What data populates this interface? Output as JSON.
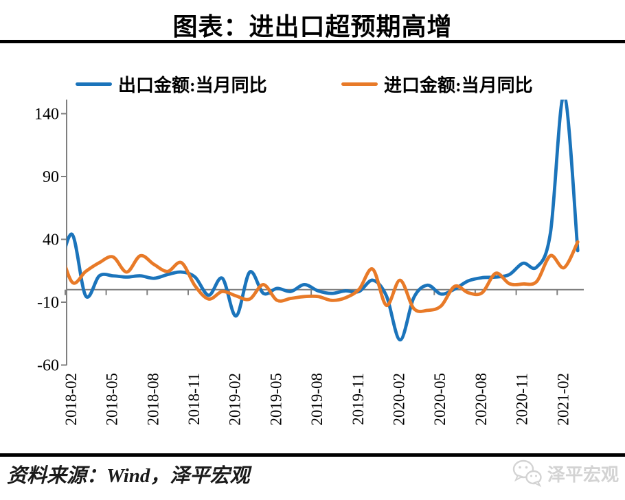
{
  "title": "图表：进出口超预期高增",
  "legend": [
    {
      "label": "出口金额:当月同比",
      "color": "#1b74bb"
    },
    {
      "label": "进口金额:当月同比",
      "color": "#e87a28"
    }
  ],
  "source_note": "资料来源：Wind，泽平宏观",
  "watermark": {
    "text": "泽平宏观",
    "icon": "wechat-chat-bubbles-icon",
    "color": "#d3d3d3"
  },
  "colors": {
    "export_line": "#1b74bb",
    "import_line": "#e87a28",
    "axis": "#7f7f7f",
    "divider": "#000000"
  },
  "chart_data": {
    "type": "line",
    "smooth": true,
    "title": "图表：进出口超预期高增",
    "legend_position": "top",
    "grid": false,
    "ylim": [
      -60,
      151
    ],
    "yticks": [
      140,
      90,
      40,
      -10,
      -60
    ],
    "x": [
      "2018-01",
      "2018-02",
      "2018-03",
      "2018-04",
      "2018-05",
      "2018-06",
      "2018-07",
      "2018-08",
      "2018-09",
      "2018-10",
      "2018-11",
      "2018-12",
      "2019-01",
      "2019-02",
      "2019-03",
      "2019-04",
      "2019-05",
      "2019-06",
      "2019-07",
      "2019-08",
      "2019-09",
      "2019-10",
      "2019-11",
      "2019-12",
      "2020-01",
      "2020-02",
      "2020-03",
      "2020-04",
      "2020-05",
      "2020-06",
      "2020-07",
      "2020-08",
      "2020-09",
      "2020-10",
      "2020-11",
      "2020-12",
      "2021-01",
      "2021-02",
      "2021-03"
    ],
    "xtick_labels": [
      "2018-02",
      "2018-05",
      "2018-08",
      "2018-11",
      "2019-02",
      "2019-05",
      "2019-08",
      "2019-11",
      "2020-02",
      "2020-05",
      "2020-08",
      "2020-11",
      "2021-02"
    ],
    "series": [
      {
        "name": "出口金额:当月同比",
        "color": "#1b74bb",
        "values": [
          11,
          44,
          -5,
          11,
          11,
          10,
          11,
          9,
          12,
          14,
          10,
          -4.5,
          9,
          -21,
          14,
          -3,
          1,
          -1.5,
          4,
          -1,
          -3,
          -1,
          -1.5,
          7.5,
          -5,
          -40,
          -6.5,
          3.5,
          -3.5,
          0.5,
          7,
          9.5,
          10,
          12,
          21,
          18,
          45,
          155,
          31
        ]
      },
      {
        "name": "进口金额:当月同比",
        "color": "#e87a28",
        "values": [
          37,
          6,
          14.5,
          21.5,
          26,
          14,
          27,
          20,
          14.5,
          21.5,
          3,
          -7.5,
          -1.5,
          -5,
          -7.5,
          4,
          -8.5,
          -7,
          -5.5,
          -5.5,
          -8.5,
          -6.5,
          0.3,
          16.3,
          -12.5,
          7.5,
          -15,
          -16.5,
          -13,
          2.7,
          -2.5,
          -2.5,
          13,
          4.7,
          4.5,
          6.5,
          27,
          17.5,
          38
        ]
      }
    ]
  }
}
